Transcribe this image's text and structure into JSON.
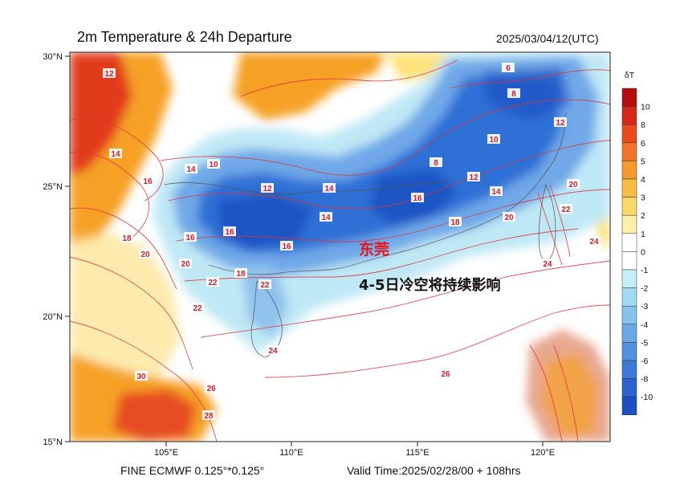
{
  "header": {
    "title": "2m Temperature & 24h Departure",
    "date": "2025/03/04/12(UTC)"
  },
  "footer": {
    "model": "FINE ECMWF 0.125°*0.125°",
    "valid_time": "Valid Time:2025/02/28/00 + 108hrs"
  },
  "map": {
    "lat_labels": [
      "30°N",
      "25°N",
      "20°N",
      "15°N"
    ],
    "lon_labels": [
      "105°E",
      "110°E",
      "115°E",
      "120°E"
    ],
    "city_label": "东莞",
    "annotation": "4-5日冷空将持续影响",
    "contour_labels": [
      "6",
      "8",
      "8",
      "10",
      "10",
      "12",
      "12",
      "12",
      "14",
      "14",
      "14",
      "16",
      "16",
      "16",
      "16",
      "18",
      "18",
      "20",
      "20",
      "20",
      "22",
      "22",
      "22",
      "24",
      "24",
      "24",
      "26",
      "26",
      "28",
      "30",
      "12",
      "14",
      "14",
      "16",
      "18",
      "20",
      "22"
    ],
    "colors": {
      "warm_strong": "#e23a1e",
      "warm": "#f6a128",
      "warm_light": "#fde27a",
      "cool_light": "#bfe8f5",
      "cool": "#6fa8e8",
      "cool_strong": "#2f6fd6",
      "cool_deep": "#1e55c4",
      "contour": "#e0303a"
    }
  },
  "colorbar": {
    "title": "δT",
    "levels": [
      "10",
      "8",
      "6",
      "5",
      "4",
      "3",
      "2",
      "1",
      "0",
      "-1",
      "-2",
      "-3",
      "-4",
      "-5",
      "-6",
      "-8",
      "-10"
    ],
    "colors": [
      "#b30d0d",
      "#d9241a",
      "#ec4a1c",
      "#f4732a",
      "#f69a30",
      "#f9bd45",
      "#fbd86a",
      "#fdf0a8",
      "#ffffff",
      "#ffffff",
      "#c6eef8",
      "#a2dcf4",
      "#84c3ee",
      "#6aa9e8",
      "#5291e0",
      "#3c79d8",
      "#2a62cf",
      "#1e4fc2"
    ]
  }
}
